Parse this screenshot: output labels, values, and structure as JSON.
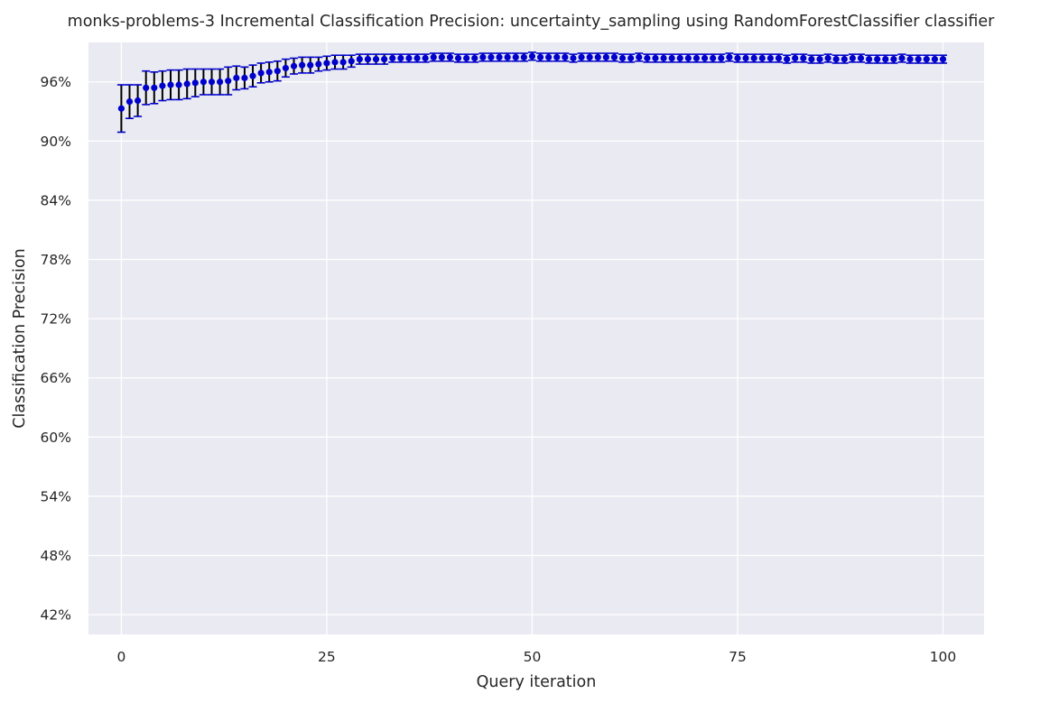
{
  "chart_data": {
    "type": "scatter",
    "title": "monks-problems-3 Incremental Classification Precision: uncertainty_sampling using RandomForestClassifier classifier",
    "xlabel": "Query iteration",
    "ylabel": "Classification Precision",
    "xlim": [
      -4,
      105
    ],
    "ylim": [
      0.4,
      1.0
    ],
    "xticks": [
      0,
      25,
      50,
      75,
      100
    ],
    "xtick_labels": [
      "0",
      "25",
      "50",
      "75",
      "100"
    ],
    "yticks": [
      0.42,
      0.48,
      0.54,
      0.6,
      0.66,
      0.72,
      0.78,
      0.84,
      0.9,
      0.96
    ],
    "ytick_labels": [
      "42%",
      "48%",
      "54%",
      "60%",
      "66%",
      "72%",
      "78%",
      "84%",
      "90%",
      "96%"
    ],
    "grid": true,
    "background": "#eaeaf2",
    "marker_color": "#0000cc",
    "errorbar_color": "#000000",
    "cap_color": "#0000cc",
    "series": [
      {
        "x": [
          0,
          1,
          2,
          3,
          4,
          5,
          6,
          7,
          8,
          9,
          10,
          11,
          12,
          13,
          14,
          15,
          16,
          17,
          18,
          19,
          20,
          21,
          22,
          23,
          24,
          25,
          26,
          27,
          28,
          29,
          30,
          31,
          32,
          33,
          34,
          35,
          36,
          37,
          38,
          39,
          40,
          41,
          42,
          43,
          44,
          45,
          46,
          47,
          48,
          49,
          50,
          51,
          52,
          53,
          54,
          55,
          56,
          57,
          58,
          59,
          60,
          61,
          62,
          63,
          64,
          65,
          66,
          67,
          68,
          69,
          70,
          71,
          72,
          73,
          74,
          75,
          76,
          77,
          78,
          79,
          80,
          81,
          82,
          83,
          84,
          85,
          86,
          87,
          88,
          89,
          90,
          91,
          92,
          93,
          94,
          95,
          96,
          97,
          98,
          99,
          100
        ],
        "y": [
          0.933,
          0.94,
          0.941,
          0.954,
          0.954,
          0.956,
          0.957,
          0.957,
          0.958,
          0.959,
          0.96,
          0.96,
          0.96,
          0.961,
          0.964,
          0.964,
          0.966,
          0.969,
          0.97,
          0.971,
          0.974,
          0.976,
          0.977,
          0.977,
          0.978,
          0.979,
          0.98,
          0.98,
          0.981,
          0.983,
          0.983,
          0.983,
          0.983,
          0.984,
          0.984,
          0.984,
          0.984,
          0.984,
          0.985,
          0.985,
          0.985,
          0.984,
          0.984,
          0.984,
          0.985,
          0.985,
          0.985,
          0.985,
          0.985,
          0.985,
          0.986,
          0.985,
          0.985,
          0.985,
          0.985,
          0.984,
          0.985,
          0.985,
          0.985,
          0.985,
          0.985,
          0.984,
          0.984,
          0.985,
          0.984,
          0.984,
          0.984,
          0.984,
          0.984,
          0.984,
          0.984,
          0.984,
          0.984,
          0.984,
          0.985,
          0.984,
          0.984,
          0.984,
          0.984,
          0.984,
          0.984,
          0.983,
          0.984,
          0.984,
          0.983,
          0.983,
          0.984,
          0.983,
          0.983,
          0.984,
          0.984,
          0.983,
          0.983,
          0.983,
          0.983,
          0.984,
          0.983,
          0.983,
          0.983,
          0.983,
          0.983
        ],
        "yerr": [
          0.024,
          0.017,
          0.016,
          0.017,
          0.016,
          0.015,
          0.015,
          0.015,
          0.015,
          0.014,
          0.013,
          0.013,
          0.013,
          0.014,
          0.012,
          0.011,
          0.011,
          0.01,
          0.01,
          0.01,
          0.009,
          0.008,
          0.008,
          0.008,
          0.007,
          0.007,
          0.007,
          0.007,
          0.006,
          0.005,
          0.005,
          0.005,
          0.005,
          0.004,
          0.004,
          0.004,
          0.004,
          0.004,
          0.004,
          0.004,
          0.004,
          0.004,
          0.004,
          0.004,
          0.004,
          0.004,
          0.004,
          0.004,
          0.004,
          0.004,
          0.004,
          0.004,
          0.004,
          0.004,
          0.004,
          0.004,
          0.004,
          0.004,
          0.004,
          0.004,
          0.004,
          0.004,
          0.004,
          0.004,
          0.004,
          0.004,
          0.004,
          0.004,
          0.004,
          0.004,
          0.004,
          0.004,
          0.004,
          0.004,
          0.004,
          0.004,
          0.004,
          0.004,
          0.004,
          0.004,
          0.004,
          0.004,
          0.004,
          0.004,
          0.004,
          0.004,
          0.004,
          0.004,
          0.004,
          0.004,
          0.004,
          0.004,
          0.004,
          0.004,
          0.004,
          0.004,
          0.004,
          0.004,
          0.004,
          0.004,
          0.004
        ]
      }
    ]
  }
}
